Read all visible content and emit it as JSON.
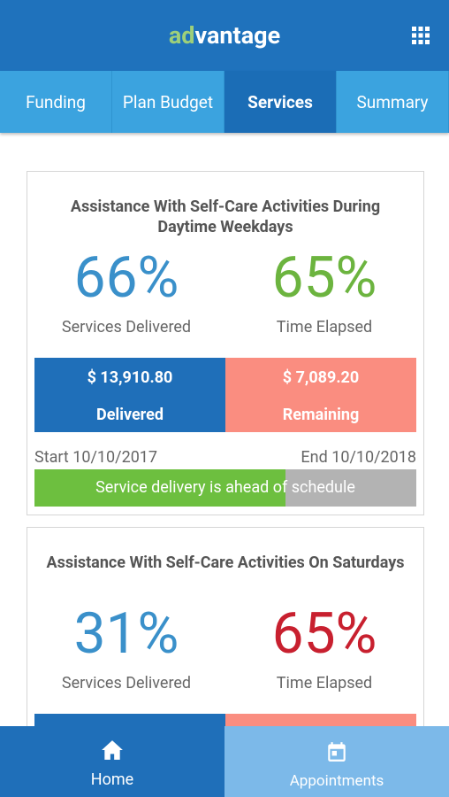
{
  "header": {
    "logo_a": "ad",
    "logo_b": "vantage"
  },
  "tabs": [
    "Funding",
    "Plan Budget",
    "Services",
    "Summary"
  ],
  "cards": [
    {
      "title": "Assistance With Self-Care Activities During Daytime Weekdays",
      "delivered_pct": "66%",
      "delivered_label": "Services Delivered",
      "elapsed_pct": "65%",
      "elapsed_label": "Time Elapsed",
      "delivered_amount": "$ 13,910.80",
      "delivered_caption": "Delivered",
      "remaining_amount": "$ 7,089.20",
      "remaining_caption": "Remaining",
      "start": "Start 10/10/2017",
      "end": "End 10/10/2018",
      "status": "Service delivery is ahead of schedule"
    },
    {
      "title": "Assistance With Self-Care Activities On Saturdays",
      "delivered_pct": "31%",
      "delivered_label": "Services Delivered",
      "elapsed_pct": "65%",
      "elapsed_label": "Time Elapsed"
    }
  ],
  "nav": [
    "Home",
    "Appointments"
  ]
}
